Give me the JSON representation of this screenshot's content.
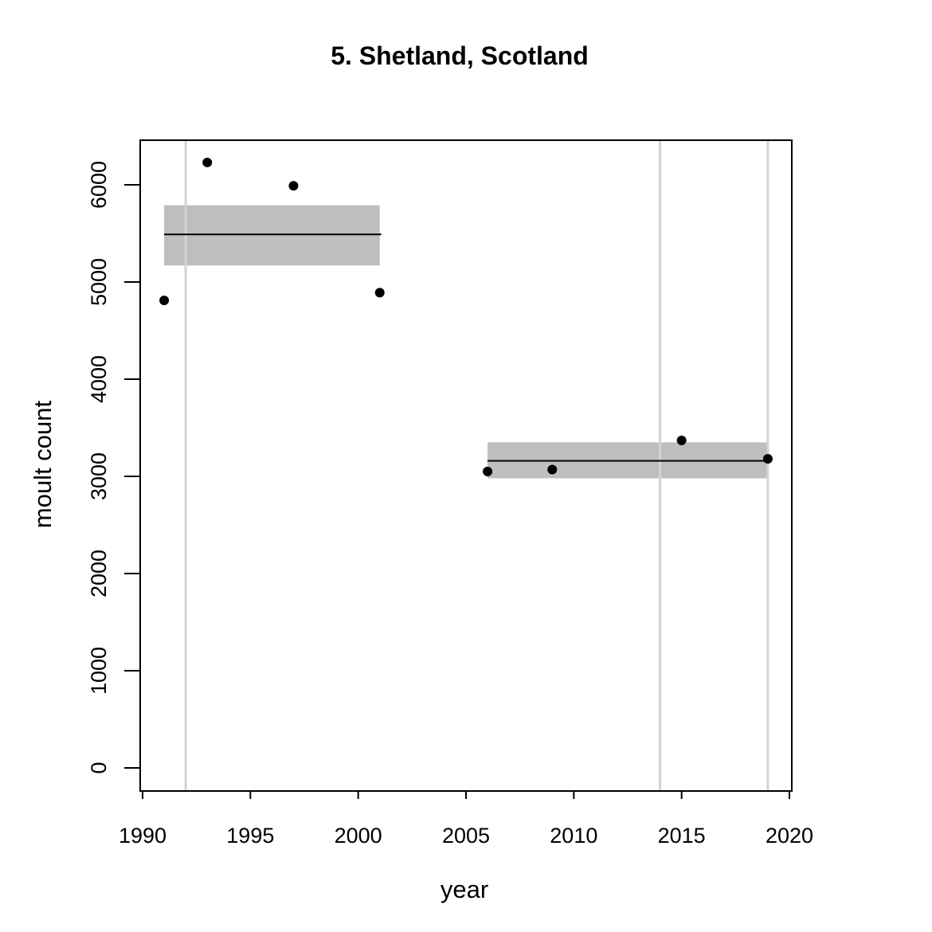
{
  "chart_data": {
    "type": "scatter",
    "title": "5. Shetland, Scotland",
    "xlabel": "year",
    "ylabel": "moult count",
    "xlim": [
      1990,
      2020
    ],
    "ylim": [
      0,
      6400
    ],
    "x_ticks": [
      1990,
      1995,
      2000,
      2005,
      2010,
      2015,
      2020
    ],
    "y_ticks": [
      0,
      1000,
      2000,
      3000,
      4000,
      5000,
      6000
    ],
    "grid": false,
    "points": [
      {
        "x": 1991,
        "y": 4810
      },
      {
        "x": 1993,
        "y": 6230
      },
      {
        "x": 1997,
        "y": 5990
      },
      {
        "x": 2001,
        "y": 4890
      },
      {
        "x": 2006,
        "y": 3050
      },
      {
        "x": 2009,
        "y": 3070
      },
      {
        "x": 2015,
        "y": 3370
      },
      {
        "x": 2019,
        "y": 3180
      }
    ],
    "segments": [
      {
        "x_start": 1991,
        "x_end": 2001,
        "mean": 5490,
        "lower": 5170,
        "upper": 5790
      },
      {
        "x_start": 2006,
        "x_end": 2019,
        "mean": 3160,
        "lower": 2980,
        "upper": 3350
      }
    ],
    "vertical_lines": [
      1992,
      2014,
      2019
    ],
    "colors": {
      "points": "#000000",
      "mean_line": "#000000",
      "band": "#bebebe",
      "vertical_line": "#d3d3d3",
      "axis": "#000000"
    }
  }
}
